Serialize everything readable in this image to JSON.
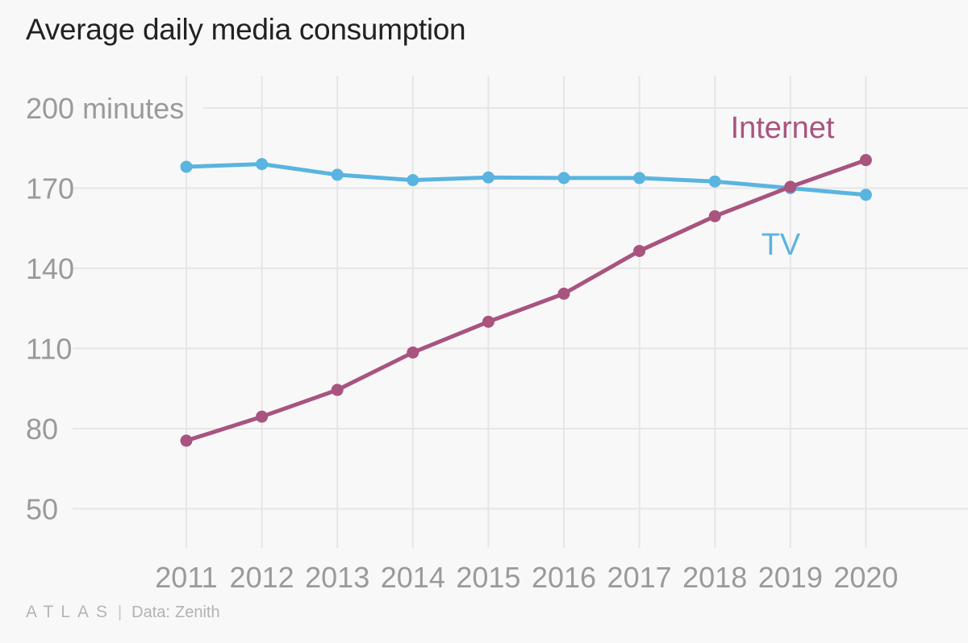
{
  "title": "Average daily media consumption",
  "chart_data": {
    "type": "line",
    "x": [
      "2011",
      "2012",
      "2013",
      "2014",
      "2015",
      "2016",
      "2017",
      "2018",
      "2019",
      "2020"
    ],
    "series": [
      {
        "name": "TV",
        "color": "#5ab4e0",
        "values": [
          178,
          179,
          175,
          173,
          174,
          173.8,
          173.8,
          172.5,
          170,
          167.5
        ]
      },
      {
        "name": "Internet",
        "color": "#a8547e",
        "values": [
          75.5,
          84.5,
          94.5,
          108.5,
          120,
          130.5,
          146.5,
          159.5,
          170.5,
          180.5
        ]
      }
    ],
    "y_ticks": [
      50,
      80,
      110,
      140,
      170,
      200
    ],
    "y_top_label": "200 minutes",
    "ylim": [
      38,
      203
    ],
    "grid": true,
    "legend": "inline"
  },
  "footer": {
    "logo": "ATLAS",
    "source_label": "Data:",
    "source": "Zenith"
  }
}
